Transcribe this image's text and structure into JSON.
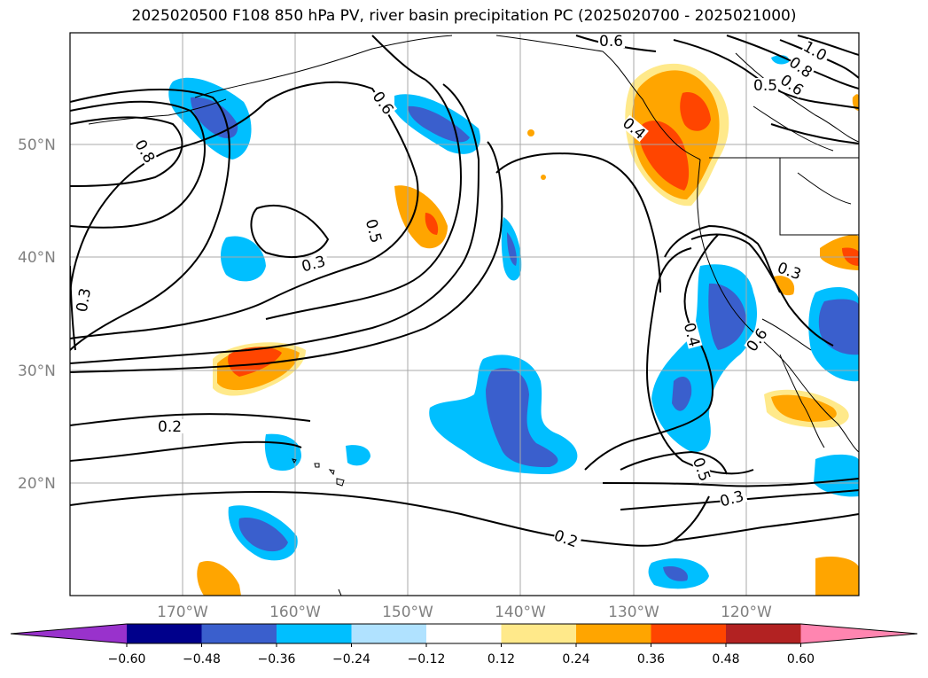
{
  "title": "2025020500 F108 850 hPa PV, river basin precipitation PC (2025020700 - 2025021000)",
  "lat_labels": [
    "50°N",
    "40°N",
    "30°N",
    "20°N"
  ],
  "lon_labels": [
    "170°W",
    "160°W",
    "150°W",
    "140°W",
    "130°W",
    "120°W"
  ],
  "contour_labels": [
    "0.6",
    "0.6",
    "0.8",
    "0.8",
    "1.0",
    "0.5",
    "0.6",
    "0.4",
    "0.5",
    "0.3",
    "0.3",
    "0.3",
    "0.4",
    "0.6",
    "0.2",
    "0.5",
    "0.3",
    "0.2"
  ],
  "colorbar": {
    "ticks": [
      "−0.60",
      "−0.48",
      "−0.36",
      "−0.24",
      "−0.12",
      "0.12",
      "0.24",
      "0.36",
      "0.48",
      "0.60"
    ],
    "colors": [
      "#9932cc",
      "#00008b",
      "#3a5fcd",
      "#00bfff",
      "#b0e2ff",
      "#ffffff",
      "#ffe98a",
      "#ffa500",
      "#ff4500",
      "#b22222",
      "#ff85b0"
    ]
  }
}
